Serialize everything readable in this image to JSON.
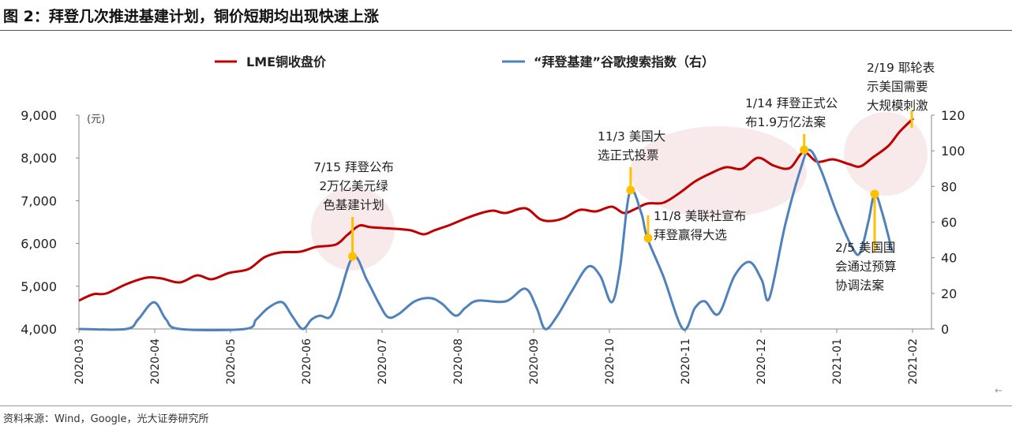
{
  "title": "图 2：拜登几次推进基建计划，铜价短期均出现快速上涨",
  "source": "资料来源：Wind，Google，光大证券研究所",
  "back_icon": "arrow-left-icon",
  "chart_data": {
    "type": "line",
    "title": "图 2：拜登几次推进基建计划，铜价短期均出现快速上涨",
    "x_unit": "month index from 2020-03",
    "x_ticks": [
      "2020-03",
      "2020-04",
      "2020-05",
      "2020-06",
      "2020-07",
      "2020-08",
      "2020-09",
      "2020-10",
      "2020-11",
      "2020-12",
      "2021-01",
      "2021-02"
    ],
    "y_left": {
      "label": "(元)",
      "range": [
        4000,
        9000
      ],
      "ticks": [
        "4,000",
        "5,000",
        "6,000",
        "7,000",
        "8,000",
        "9,000"
      ]
    },
    "y_right": {
      "range": [
        0,
        120
      ],
      "ticks": [
        "0",
        "20",
        "40",
        "60",
        "80",
        "100",
        "120"
      ]
    },
    "legend": {
      "placement": "top"
    },
    "colors": {
      "lme": "#C00000",
      "google": "#4F81BD",
      "annotation": "#FFC000",
      "highlight": "#F4DCDC"
    },
    "series": [
      {
        "name": "LME铜收盘价",
        "axis": "left",
        "points": [
          [
            0,
            4664
          ],
          [
            0.19,
            4812
          ],
          [
            0.36,
            4830
          ],
          [
            0.63,
            5052
          ],
          [
            0.89,
            5199
          ],
          [
            1.09,
            5181
          ],
          [
            1.33,
            5089
          ],
          [
            1.56,
            5255
          ],
          [
            1.75,
            5162
          ],
          [
            1.98,
            5310
          ],
          [
            2.24,
            5402
          ],
          [
            2.45,
            5679
          ],
          [
            2.66,
            5790
          ],
          [
            2.92,
            5808
          ],
          [
            3.13,
            5919
          ],
          [
            3.39,
            5974
          ],
          [
            3.54,
            6196
          ],
          [
            3.7,
            6417
          ],
          [
            3.85,
            6380
          ],
          [
            4.17,
            6343
          ],
          [
            4.38,
            6306
          ],
          [
            4.55,
            6214
          ],
          [
            4.69,
            6306
          ],
          [
            4.9,
            6435
          ],
          [
            5.1,
            6583
          ],
          [
            5.31,
            6712
          ],
          [
            5.47,
            6768
          ],
          [
            5.63,
            6712
          ],
          [
            5.89,
            6823
          ],
          [
            6.09,
            6565
          ],
          [
            6.25,
            6528
          ],
          [
            6.41,
            6601
          ],
          [
            6.61,
            6786
          ],
          [
            6.82,
            6749
          ],
          [
            7.03,
            6860
          ],
          [
            7.19,
            6712
          ],
          [
            7.34,
            6804
          ],
          [
            7.5,
            6934
          ],
          [
            7.71,
            6952
          ],
          [
            7.92,
            7173
          ],
          [
            8.13,
            7450
          ],
          [
            8.33,
            7635
          ],
          [
            8.54,
            7782
          ],
          [
            8.75,
            7745
          ],
          [
            8.96,
            8004
          ],
          [
            9.17,
            7819
          ],
          [
            9.38,
            7764
          ],
          [
            9.56,
            8133
          ],
          [
            9.74,
            7911
          ],
          [
            9.95,
            7967
          ],
          [
            10.16,
            7856
          ],
          [
            10.31,
            7801
          ],
          [
            10.47,
            8004
          ],
          [
            10.68,
            8280
          ],
          [
            10.83,
            8613
          ],
          [
            11.01,
            8926
          ]
        ]
      },
      {
        "name": "“拜登基建”谷歌搜索指数（右）",
        "axis": "right",
        "points": [
          [
            0,
            0
          ],
          [
            0.625,
            0
          ],
          [
            0.78,
            5.3
          ],
          [
            0.99,
            15
          ],
          [
            1.15,
            5.3
          ],
          [
            1.33,
            0
          ],
          [
            2.19,
            0
          ],
          [
            2.34,
            5.3
          ],
          [
            2.5,
            11.9
          ],
          [
            2.68,
            15
          ],
          [
            2.81,
            7.5
          ],
          [
            2.95,
            0
          ],
          [
            3.07,
            5.3
          ],
          [
            3.18,
            7.5
          ],
          [
            3.31,
            6.6
          ],
          [
            3.42,
            16.4
          ],
          [
            3.62,
            40.7
          ],
          [
            3.8,
            27.5
          ],
          [
            3.96,
            14.2
          ],
          [
            4.08,
            6.6
          ],
          [
            4.22,
            8.4
          ],
          [
            4.43,
            15.5
          ],
          [
            4.64,
            17.3
          ],
          [
            4.79,
            14.2
          ],
          [
            4.97,
            7.5
          ],
          [
            5.1,
            11.9
          ],
          [
            5.26,
            15.9
          ],
          [
            5.63,
            15.5
          ],
          [
            5.89,
            22.6
          ],
          [
            6.04,
            11.9
          ],
          [
            6.15,
            0
          ],
          [
            6.3,
            6.6
          ],
          [
            6.51,
            21.7
          ],
          [
            6.72,
            35
          ],
          [
            6.88,
            29.7
          ],
          [
            7.03,
            15
          ],
          [
            7.14,
            34.1
          ],
          [
            7.27,
            77
          ],
          [
            7.42,
            65.2
          ],
          [
            7.5,
            51
          ],
          [
            7.71,
            29.7
          ],
          [
            7.97,
            0
          ],
          [
            8.13,
            11.9
          ],
          [
            8.26,
            15.5
          ],
          [
            8.44,
            8.4
          ],
          [
            8.65,
            29.7
          ],
          [
            8.85,
            37.6
          ],
          [
            9.01,
            27.5
          ],
          [
            9.11,
            17.3
          ],
          [
            9.32,
            58.5
          ],
          [
            9.53,
            90.8
          ],
          [
            9.64,
            100.5
          ],
          [
            9.79,
            89.4
          ],
          [
            10.0,
            65.2
          ],
          [
            10.21,
            45.2
          ],
          [
            10.31,
            43
          ],
          [
            10.42,
            60.7
          ],
          [
            10.5,
            75.7
          ],
          [
            10.6,
            65.2
          ],
          [
            10.73,
            43.8
          ]
        ]
      }
    ],
    "annotations": [
      {
        "lines": [
          "7/15 拜登公布",
          "2万亿美元绿",
          "色基建计划"
        ],
        "x": 3.61,
        "value": 40.7
      },
      {
        "lines": [
          "11/3 美国大",
          "选正式投票"
        ],
        "x": 7.28,
        "value": 78
      },
      {
        "lines": [
          "11/8 美联社宣布",
          "拜登赢得大选"
        ],
        "x": 7.51,
        "value": 51
      },
      {
        "lines": [
          "1/14 拜登正式公",
          "布1.9万亿法案"
        ],
        "x": 9.57,
        "value": 100.5
      },
      {
        "lines": [
          "2/19 耶轮表",
          "示美国需要",
          "大规模刺激"
        ],
        "x": 10.99,
        "value": null
      },
      {
        "lines": [
          "2/5 美国国",
          "会通过预算",
          "协调法案"
        ],
        "x": 10.5,
        "value": 75.7
      }
    ]
  }
}
